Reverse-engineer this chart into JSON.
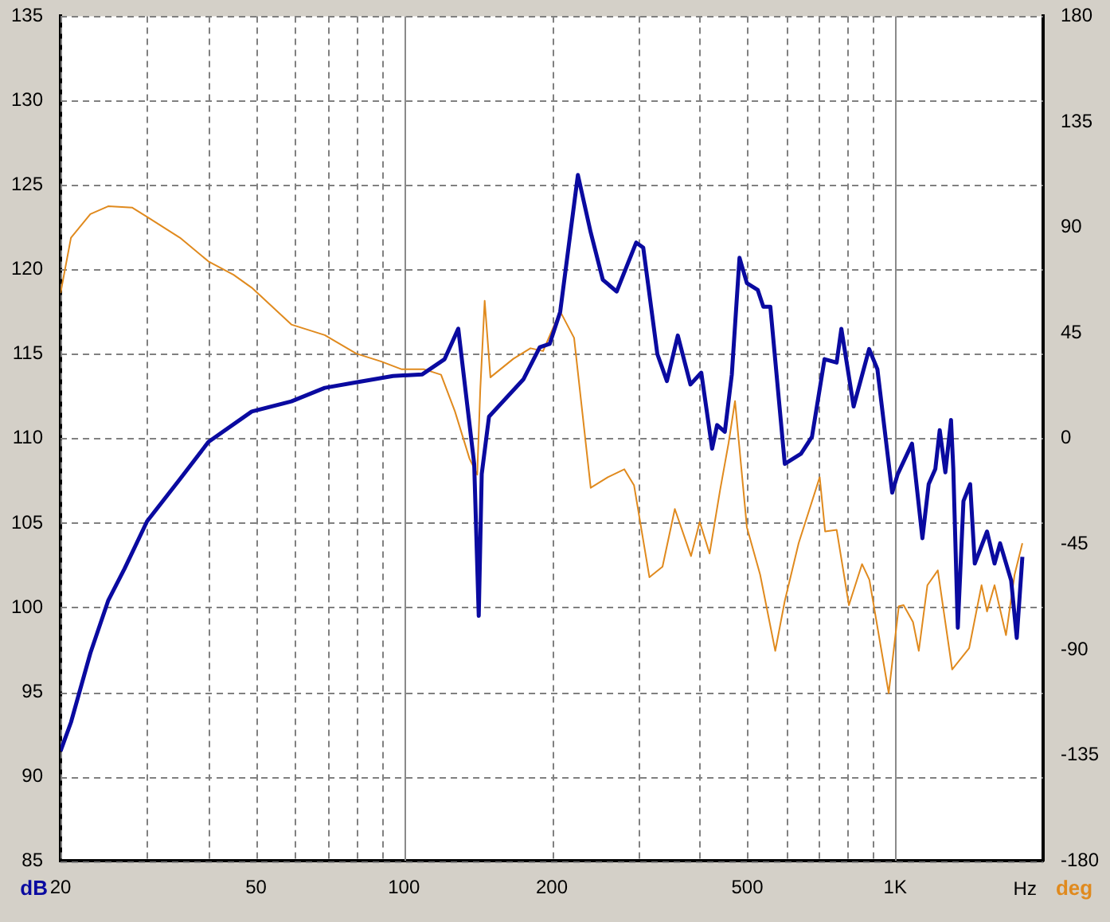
{
  "chart_data": {
    "type": "line",
    "xlabel": "Hz",
    "ylabel": "dB",
    "y2label": "deg",
    "log": "x",
    "grid": true,
    "legend": false,
    "marker": "none",
    "xlim": [
      20,
      2000
    ],
    "xticks": [
      20,
      {
        "value": 30,
        "label": null
      },
      {
        "value": 40,
        "label": null
      },
      50,
      {
        "value": 60,
        "label": null
      },
      {
        "value": 70,
        "label": null
      },
      {
        "value": 80,
        "label": null
      },
      {
        "value": 90,
        "label": null
      },
      100,
      200,
      {
        "value": 300,
        "label": null
      },
      {
        "value": 400,
        "label": null
      },
      500,
      {
        "value": 600,
        "label": null
      },
      {
        "value": 700,
        "label": null
      },
      {
        "value": 800,
        "label": null
      },
      {
        "value": 900,
        "label": null
      },
      {
        "value": 1000,
        "label": "1K"
      }
    ],
    "ylim": [
      85,
      135
    ],
    "yticks": [
      85,
      90,
      95,
      100,
      105,
      110,
      115,
      120,
      125,
      130,
      135
    ],
    "y2lim": [
      -180,
      180
    ],
    "y2ticks": [
      -180,
      -135,
      -90,
      -45,
      0,
      45,
      90,
      135,
      180
    ],
    "series": [
      {
        "color": "#0a0aa0",
        "x": [
          20,
          21,
          23,
          25,
          27,
          30,
          35,
          40,
          49,
          59,
          69,
          79,
          95,
          109,
          121,
          129,
          139,
          142,
          144,
          149,
          175,
          189,
          198,
          208,
          226,
          240,
          254,
          271,
          297,
          307,
          328,
          343,
          361,
          383,
          403,
          424,
          434,
          450,
          465,
          482,
          499,
          525,
          539,
          557,
          596,
          643,
          677,
          718,
          760,
          777,
          823,
          885,
          920,
          986,
          1012,
          1082,
          1136,
          1170,
          1207,
          1232,
          1265,
          1299,
          1313,
          1341,
          1377,
          1421,
          1452,
          1538,
          1593,
          1635,
          1722,
          1768,
          1815
        ],
        "values": [
          91.5,
          93.2,
          97.3,
          100.4,
          102.3,
          105.1,
          107.6,
          109.8,
          111.6,
          112.2,
          113.0,
          113.3,
          113.7,
          113.8,
          114.7,
          116.5,
          108.5,
          99.5,
          107.9,
          111.3,
          113.5,
          115.4,
          115.6,
          117.5,
          125.6,
          122.2,
          119.4,
          118.7,
          121.6,
          121.3,
          115.0,
          113.4,
          116.1,
          113.2,
          113.9,
          109.4,
          110.8,
          110.4,
          113.8,
          120.7,
          119.2,
          118.8,
          117.8,
          117.8,
          108.5,
          109.1,
          110.1,
          114.7,
          114.5,
          116.5,
          111.9,
          115.3,
          114.1,
          106.8,
          107.9,
          109.7,
          104.1,
          107.3,
          108.2,
          110.5,
          108.0,
          111.1,
          108.2,
          98.8,
          106.3,
          107.3,
          102.6,
          104.5,
          102.6,
          103.8,
          101.6,
          98.2,
          103.0
        ]
      },
      {
        "color": "#e08a1e",
        "axis": "y2",
        "x": [
          20,
          21,
          23,
          25,
          28,
          30,
          35,
          40,
          45,
          49,
          59,
          69,
          80,
          90,
          99,
          110,
          119,
          127,
          136,
          141,
          143,
          146,
          150,
          167,
          181,
          192,
          208,
          222,
          240,
          260,
          281,
          294,
          316,
          336,
          356,
          384,
          400,
          419,
          440,
          458,
          472,
          499,
          531,
          570,
          596,
          636,
          702,
          720,
          760,
          805,
          856,
          886,
          970,
          1017,
          1040,
          1087,
          1117,
          1163,
          1221,
          1306,
          1414,
          1499,
          1538,
          1593,
          1681,
          1750,
          1815
        ],
        "values": [
          62.0,
          85.6,
          95.7,
          99.0,
          98.4,
          94.5,
          85.6,
          75.5,
          69.8,
          64.3,
          48.6,
          44.1,
          36.2,
          32.8,
          29.5,
          29.5,
          27.2,
          11.6,
          -8.6,
          -15.4,
          20.5,
          58.7,
          26.1,
          34.0,
          38.5,
          37.3,
          54.2,
          42.9,
          -21.0,
          -16.5,
          -13.1,
          -19.9,
          -59.1,
          -54.6,
          -30.0,
          -50.1,
          -35.5,
          -49.0,
          -22.1,
          -1.9,
          16.0,
          -37.8,
          -58.0,
          -90.5,
          -69.2,
          -44.6,
          -16.5,
          -39.6,
          -38.9,
          -71.0,
          -53.5,
          -60.2,
          -108.5,
          -71.5,
          -71.0,
          -78.2,
          -90.5,
          -62.5,
          -56.2,
          -98.4,
          -89.4,
          -62.5,
          -73.7,
          -62.5,
          -83.8,
          -58.0,
          -44.6
        ]
      }
    ]
  }
}
